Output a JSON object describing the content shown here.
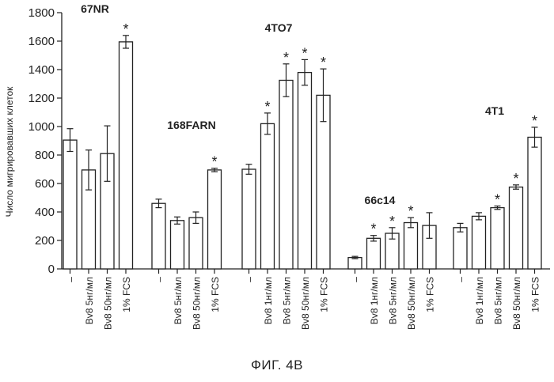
{
  "caption": "ФИГ. 4В",
  "chart_data": {
    "type": "bar",
    "ylabel": "Число мигрировавших клеток",
    "xlabel": "",
    "ylim": [
      0,
      1800
    ],
    "yticks": [
      0,
      200,
      400,
      600,
      800,
      1000,
      1200,
      1400,
      1600,
      1800
    ],
    "grid": false,
    "bar_fill": "#ffffff",
    "bar_stroke": "#222222",
    "significance_mark": "*",
    "groups": [
      {
        "name": "67NR",
        "categories": [
          "–",
          "Bv8 5нг/мл",
          "Bv8 50нг/мл",
          "1% FCS"
        ],
        "values": [
          905,
          695,
          810,
          1595
        ],
        "errors": [
          80,
          140,
          195,
          45
        ],
        "significant": [
          false,
          false,
          false,
          true
        ]
      },
      {
        "name": "168FARN",
        "categories": [
          "–",
          "Bv8 5нг/мл",
          "Bv8 50нг/мл",
          "1% FCS"
        ],
        "values": [
          460,
          340,
          360,
          695
        ],
        "errors": [
          30,
          25,
          40,
          12
        ],
        "significant": [
          false,
          false,
          false,
          true
        ]
      },
      {
        "name": "4TO7",
        "categories": [
          "–",
          "Bv8 1нг/мл",
          "Bv8 5нг/мл",
          "Bv8 50нг/мл",
          "1% FCS"
        ],
        "values": [
          700,
          1020,
          1325,
          1380,
          1220
        ],
        "errors": [
          35,
          75,
          115,
          90,
          185
        ],
        "significant": [
          false,
          true,
          true,
          true,
          true
        ]
      },
      {
        "name": "66c14",
        "categories": [
          "–",
          "Bv8 1нг/мл",
          "Bv8 5нг/мл",
          "Bv8 50нг/мл",
          "1% FCS"
        ],
        "values": [
          80,
          215,
          250,
          325,
          305
        ],
        "errors": [
          8,
          20,
          40,
          35,
          90
        ],
        "significant": [
          false,
          true,
          true,
          true,
          false
        ]
      },
      {
        "name": "4T1",
        "categories": [
          "–",
          "Bv8 1нг/мл",
          "Bv8 5нг/мл",
          "Bv8 50нг/мл",
          "1% FCS"
        ],
        "values": [
          290,
          370,
          430,
          575,
          925
        ],
        "errors": [
          30,
          25,
          12,
          15,
          70
        ],
        "significant": [
          false,
          false,
          true,
          true,
          true
        ]
      }
    ]
  }
}
